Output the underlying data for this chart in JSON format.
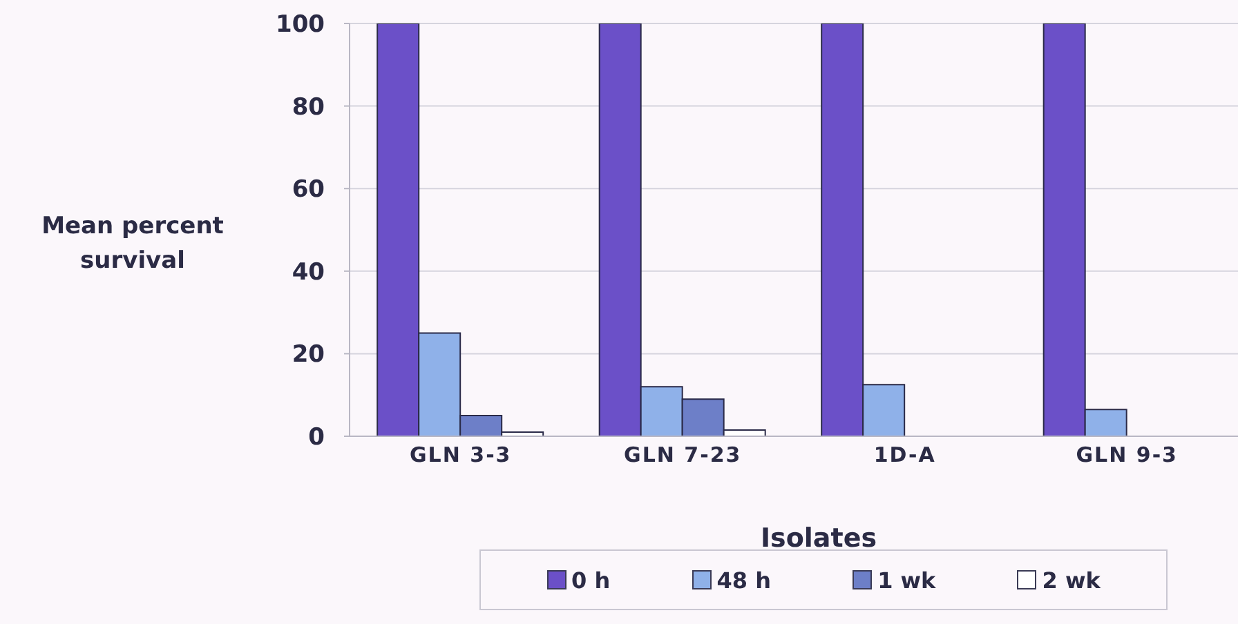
{
  "chart_data": {
    "type": "bar",
    "xlabel": "Isolates",
    "ylabel": "Mean percent survival",
    "categories": [
      "GLN 3-3",
      "GLN 7-23",
      "1D-A",
      "GLN 9-3"
    ],
    "series": [
      {
        "name": "0 h",
        "color": "#6b50c8",
        "values": [
          100,
          100,
          100,
          100
        ]
      },
      {
        "name": "48 h",
        "color": "#8fb1e9",
        "values": [
          25,
          12,
          12.5,
          6.5
        ]
      },
      {
        "name": "1 wk",
        "color": "#6d7fc8",
        "values": [
          5,
          9,
          0,
          0
        ]
      },
      {
        "name": "2 wk",
        "color": "#ffffff",
        "values": [
          1,
          1.5,
          0,
          0
        ]
      }
    ],
    "ylim": [
      0,
      100
    ],
    "yticks": [
      0,
      20,
      40,
      60,
      80,
      100
    ],
    "grid": "y",
    "legend": "bottom"
  }
}
